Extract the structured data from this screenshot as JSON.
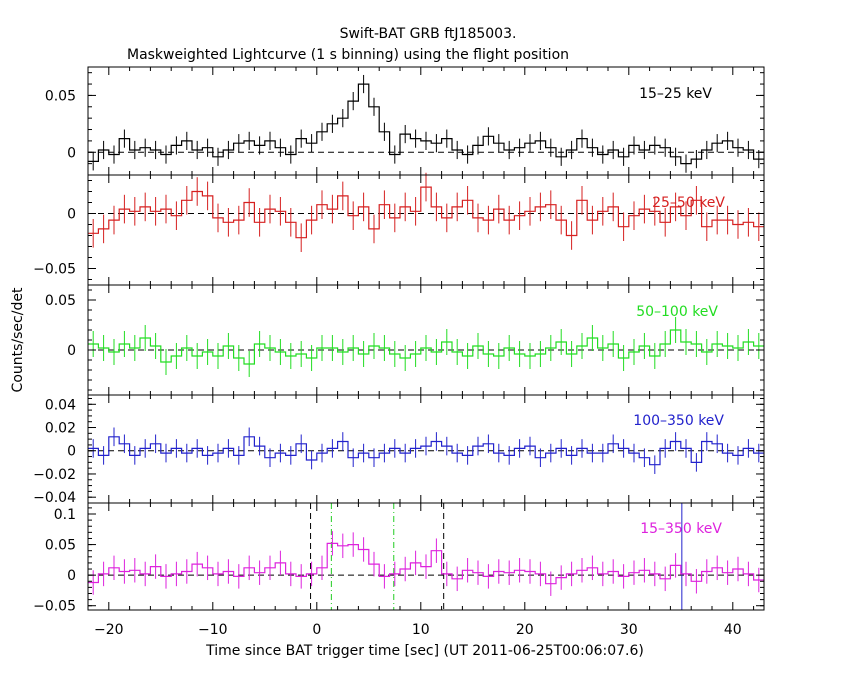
{
  "chart_data": {
    "type": "line",
    "title": "Swift-BAT GRB ftJ185003.",
    "subtitle": "Maskweighted Lightcurve (1 s binning) using the flight position",
    "xlabel": "Time since BAT trigger time [sec] (UT 2011-06-25T00:06:07.6)",
    "ylabel": "Counts/sec/det",
    "xlim": [
      -22,
      43
    ],
    "xticks": [
      -20,
      -10,
      0,
      10,
      20,
      30,
      40
    ],
    "xtick_labels": [
      "−20",
      "−10",
      "0",
      "10",
      "20",
      "30",
      "40"
    ],
    "x": [
      -21.5,
      -20.5,
      -19.5,
      -18.5,
      -17.5,
      -16.5,
      -15.5,
      -14.5,
      -13.5,
      -12.5,
      -11.5,
      -10.5,
      -9.5,
      -8.5,
      -7.5,
      -6.5,
      -5.5,
      -4.5,
      -3.5,
      -2.5,
      -1.5,
      -0.5,
      0.5,
      1.5,
      2.5,
      3.5,
      4.5,
      5.5,
      6.5,
      7.5,
      8.5,
      9.5,
      10.5,
      11.5,
      12.5,
      13.5,
      14.5,
      15.5,
      16.5,
      17.5,
      18.5,
      19.5,
      20.5,
      21.5,
      22.5,
      23.5,
      24.5,
      25.5,
      26.5,
      27.5,
      28.5,
      29.5,
      30.5,
      31.5,
      32.5,
      33.5,
      34.5,
      35.5,
      36.5,
      37.5,
      38.5,
      39.5,
      40.5,
      41.5,
      42.5
    ],
    "panels": [
      {
        "name": "15–25 keV",
        "color": "#000000",
        "ylim": [
          -0.02,
          0.075
        ],
        "yticks": [
          0,
          0.05
        ],
        "ytick_labels": [
          "0",
          "0.05"
        ],
        "minor_step": 0.01,
        "values": [
          -0.008,
          0.002,
          -0.002,
          0.012,
          0.002,
          0.004,
          0.002,
          -0.002,
          0.006,
          0.01,
          0.002,
          0.004,
          -0.004,
          0.002,
          0.008,
          0.01,
          0.006,
          0.01,
          0.004,
          -0.002,
          0.012,
          0.008,
          0.018,
          0.025,
          0.03,
          0.045,
          0.06,
          0.04,
          0.018,
          -0.002,
          0.016,
          0.012,
          0.01,
          0.008,
          0.012,
          0.002,
          -0.002,
          0.006,
          0.014,
          0.008,
          0.002,
          0.004,
          0.008,
          0.01,
          0.004,
          -0.004,
          0.002,
          0.012,
          0.004,
          -0.002,
          0.002,
          -0.004,
          0.006,
          0.002,
          0.006,
          0.004,
          -0.004,
          -0.01,
          -0.006,
          0.002,
          0.008,
          0.01,
          0.004,
          0.002,
          -0.006
        ],
        "errors": 0.008
      },
      {
        "name": "25–50 keV",
        "color": "#d62020",
        "ylim": [
          -0.065,
          0.035
        ],
        "yticks": [
          -0.05,
          0
        ],
        "ytick_labels": [
          "−0.05",
          "0"
        ],
        "minor_step": 0.01,
        "values": [
          -0.018,
          -0.014,
          -0.006,
          0.004,
          0.002,
          0.006,
          0.002,
          0.004,
          -0.002,
          0.012,
          0.02,
          0.016,
          -0.004,
          -0.008,
          -0.006,
          0.01,
          -0.008,
          0.004,
          0.002,
          -0.008,
          -0.022,
          -0.006,
          0.008,
          0.004,
          0.016,
          -0.002,
          0.006,
          -0.014,
          0.008,
          -0.004,
          0.006,
          0.002,
          0.024,
          0.006,
          -0.004,
          0.006,
          0.012,
          -0.004,
          -0.006,
          0.004,
          -0.006,
          -0.002,
          0.002,
          0.006,
          0.008,
          -0.006,
          -0.02,
          0.012,
          -0.006,
          0.002,
          0.006,
          -0.012,
          -0.002,
          0.004,
          0.002,
          -0.008,
          0.006,
          -0.002,
          0.012,
          -0.012,
          -0.006,
          -0.006,
          -0.01,
          -0.008,
          -0.012
        ],
        "errors": 0.013
      },
      {
        "name": "50–100 keV",
        "color": "#22dd22",
        "ylim": [
          -0.045,
          0.065
        ],
        "yticks": [
          0,
          0.05
        ],
        "ytick_labels": [
          "0",
          "0.05"
        ],
        "minor_step": 0.01,
        "values": [
          0.006,
          0.002,
          -0.002,
          0.006,
          0.002,
          0.012,
          0.004,
          -0.012,
          -0.006,
          0.002,
          -0.006,
          -0.002,
          -0.006,
          0.004,
          -0.008,
          -0.014,
          0.006,
          0.002,
          -0.002,
          -0.006,
          -0.004,
          -0.008,
          0.002,
          0.002,
          -0.002,
          0.002,
          -0.004,
          0.004,
          0.002,
          -0.004,
          -0.008,
          -0.004,
          0.002,
          -0.002,
          0.008,
          -0.002,
          -0.006,
          0.004,
          -0.004,
          -0.006,
          0.002,
          -0.004,
          -0.006,
          -0.004,
          0.002,
          0.008,
          -0.004,
          0.004,
          0.012,
          0.002,
          0.006,
          -0.008,
          -0.002,
          0.004,
          -0.006,
          0.006,
          0.02,
          0.008,
          0.006,
          -0.002,
          0.006,
          0.004,
          0.002,
          0.008,
          0.004
        ],
        "errors": 0.013
      },
      {
        "name": "100–350 keV",
        "color": "#2222cc",
        "ylim": [
          -0.045,
          0.048
        ],
        "yticks": [
          -0.04,
          -0.02,
          0,
          0.02,
          0.04
        ],
        "ytick_labels": [
          "−0.04",
          "−0.02",
          "0",
          "0.02",
          "0.04"
        ],
        "minor_step": 0.005,
        "values": [
          0.002,
          -0.004,
          0.012,
          0.006,
          -0.004,
          0.002,
          0.006,
          -0.002,
          0.002,
          -0.002,
          0.002,
          -0.004,
          -0.002,
          0.002,
          -0.004,
          0.012,
          0.004,
          -0.006,
          -0.002,
          -0.004,
          0.006,
          -0.008,
          -0.002,
          0.002,
          0.008,
          -0.006,
          -0.002,
          -0.006,
          -0.002,
          0.002,
          -0.002,
          0.002,
          0.004,
          0.008,
          0.004,
          -0.002,
          -0.004,
          0.004,
          0.006,
          -0.002,
          -0.004,
          0.002,
          0.004,
          -0.006,
          -0.002,
          0.002,
          -0.004,
          0.002,
          -0.002,
          -0.002,
          0.006,
          0.002,
          -0.002,
          -0.006,
          -0.012,
          0.002,
          0.008,
          0.002,
          -0.01,
          0.008,
          0.006,
          -0.002,
          -0.004,
          0.002,
          -0.002
        ],
        "errors": 0.008
      },
      {
        "name": "15–350 keV",
        "color": "#dd22dd",
        "ylim": [
          -0.057,
          0.118
        ],
        "yticks": [
          -0.05,
          0,
          0.05,
          0.1
        ],
        "ytick_labels": [
          "−0.05",
          "0",
          "0.05",
          "0.1"
        ],
        "minor_step": 0.01,
        "values": [
          -0.012,
          0.002,
          0.012,
          0.006,
          0.008,
          0.002,
          0.014,
          -0.002,
          0.002,
          0.006,
          0.018,
          0.012,
          0.002,
          0.006,
          -0.002,
          0.012,
          0.004,
          0.012,
          0.02,
          0.002,
          -0.002,
          0.002,
          0.012,
          0.052,
          0.048,
          0.05,
          0.042,
          0.018,
          -0.002,
          0.002,
          0.01,
          0.02,
          0.014,
          0.04,
          0.002,
          -0.006,
          0.008,
          0.004,
          -0.002,
          0.006,
          0.004,
          0.008,
          0.006,
          0.002,
          -0.014,
          -0.004,
          0.002,
          0.008,
          0.012,
          0.002,
          0.006,
          -0.002,
          0.004,
          0.008,
          0.002,
          -0.006,
          0.016,
          0.002,
          -0.01,
          0.006,
          0.012,
          0.004,
          0.01,
          0.002,
          -0.008
        ],
        "errors": 0.02,
        "markers": [
          {
            "x": -0.6,
            "style": "black-dashed"
          },
          {
            "x": 1.4,
            "style": "green-dashdot"
          },
          {
            "x": 7.4,
            "style": "green-dashdot"
          },
          {
            "x": 12.2,
            "style": "black-dashed"
          },
          {
            "x": 35.1,
            "style": "blue-solid"
          }
        ]
      }
    ]
  }
}
